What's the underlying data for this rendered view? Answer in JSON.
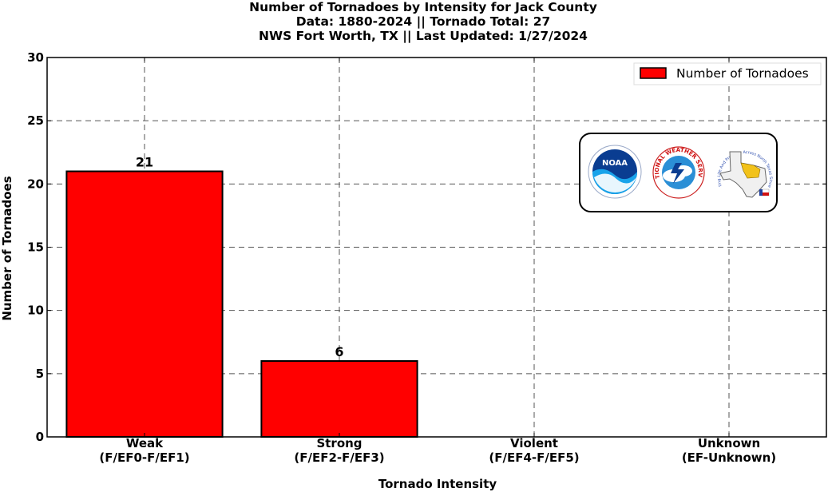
{
  "chart_data": {
    "type": "bar",
    "title_lines": [
      "Number of Tornadoes by Intensity for Jack County",
      "Data: 1880-2024 || Tornado Total: 27",
      "NWS Fort Worth, TX || Last Updated: 1/27/2024"
    ],
    "categories": [
      {
        "line1": "Weak",
        "line2": "(F/EF0-F/EF1)"
      },
      {
        "line1": "Strong",
        "line2": "(F/EF2-F/EF3)"
      },
      {
        "line1": "Violent",
        "line2": "(F/EF4-F/EF5)"
      },
      {
        "line1": "Unknown",
        "line2": "(EF-Unknown)"
      }
    ],
    "series": [
      {
        "name": "Number of Tornadoes",
        "values": [
          21,
          6,
          0,
          0
        ],
        "color": "#ff0000"
      }
    ],
    "data_labels": [
      "21",
      "6",
      "",
      ""
    ],
    "xlabel": "Tornado Intensity",
    "ylabel": "Number of Tornadoes",
    "ylim": [
      0,
      30
    ],
    "yticks": [
      0,
      5,
      10,
      15,
      20,
      25,
      30
    ],
    "grid": true,
    "legend_position": "top-right",
    "logos": [
      "noaa-logo",
      "national-weather-service-logo",
      "nws-fort-worth-logo"
    ],
    "logo_text": {
      "noaa": "NOAA",
      "nws": "NATIONAL WEATHER SERVICE",
      "fwd": "Protecting Life And Property Across North Texas Since 1870"
    }
  }
}
